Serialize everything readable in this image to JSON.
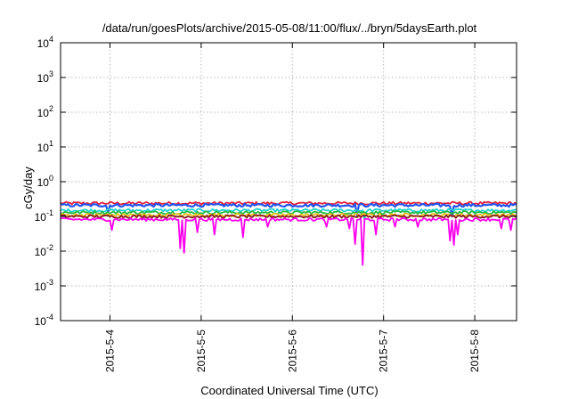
{
  "chart_data": {
    "type": "line",
    "title": "/data/run/goesPlots/archive/2015-05-08/11:00/flux/../bryn/5daysEarth.plot",
    "xlabel": "Coordinated Universal Time (UTC)",
    "ylabel": "cGy/day",
    "y_scale": "log",
    "ylim": [
      0.0001,
      10000
    ],
    "y_ticks": [
      {
        "value": 0.0001,
        "base": "10",
        "exp": "-4"
      },
      {
        "value": 0.001,
        "base": "10",
        "exp": "-3"
      },
      {
        "value": 0.01,
        "base": "10",
        "exp": "-2"
      },
      {
        "value": 0.1,
        "base": "10",
        "exp": "-1"
      },
      {
        "value": 1,
        "base": "10",
        "exp": "0"
      },
      {
        "value": 10,
        "base": "10",
        "exp": "1"
      },
      {
        "value": 100,
        "base": "10",
        "exp": "2"
      },
      {
        "value": 1000,
        "base": "10",
        "exp": "3"
      },
      {
        "value": 10000,
        "base": "10",
        "exp": "4"
      }
    ],
    "xlim": [
      "2015-05-03 11:00",
      "2015-05-08 11:00"
    ],
    "x_ticks": [
      {
        "value": "2015-05-04 00:00",
        "label": "2015-5-4"
      },
      {
        "value": "2015-05-05 00:00",
        "label": "2015-5-5"
      },
      {
        "value": "2015-05-06 00:00",
        "label": "2015-5-6"
      },
      {
        "value": "2015-05-07 00:00",
        "label": "2015-5-7"
      },
      {
        "value": "2015-05-08 00:00",
        "label": "2015-5-8"
      }
    ],
    "grid": true,
    "legend": "none",
    "series": [
      {
        "color": "#e0203a",
        "level": 0.24,
        "dips": []
      },
      {
        "color": "#2255ee",
        "level": 0.21,
        "dips": [
          {
            "time": "2015-05-03 23:30",
            "value": 0.13
          },
          {
            "time": "2015-05-06 17:00",
            "value": 0.11
          },
          {
            "time": "2015-05-07 18:00",
            "value": 0.1
          }
        ]
      },
      {
        "color": "#22d0d0",
        "level": 0.15,
        "dips": [
          {
            "time": "2015-05-06 19:00",
            "value": 0.08
          }
        ]
      },
      {
        "color": "#22bb44",
        "level": 0.13,
        "dips": []
      },
      {
        "color": "#e8c020",
        "level": 0.11,
        "dips": []
      },
      {
        "color": "#8a1a1a",
        "level": 0.1,
        "dips": []
      },
      {
        "color": "#ff00ee",
        "level": 0.082,
        "dips": [
          {
            "time": "2015-05-04 00:30",
            "value": 0.04
          },
          {
            "time": "2015-05-04 18:30",
            "value": 0.012
          },
          {
            "time": "2015-05-04 19:15",
            "value": 0.009
          },
          {
            "time": "2015-05-04 23:00",
            "value": 0.035
          },
          {
            "time": "2015-05-05 03:30",
            "value": 0.03
          },
          {
            "time": "2015-05-05 11:00",
            "value": 0.025
          },
          {
            "time": "2015-05-05 17:30",
            "value": 0.05
          },
          {
            "time": "2015-05-06 09:00",
            "value": 0.05
          },
          {
            "time": "2015-05-06 15:00",
            "value": 0.045
          },
          {
            "time": "2015-05-06 16:30",
            "value": 0.016
          },
          {
            "time": "2015-05-06 18:30",
            "value": 0.004
          },
          {
            "time": "2015-05-06 22:00",
            "value": 0.03
          },
          {
            "time": "2015-05-07 03:00",
            "value": 0.05
          },
          {
            "time": "2015-05-07 09:00",
            "value": 0.05
          },
          {
            "time": "2015-05-07 17:30",
            "value": 0.02
          },
          {
            "time": "2015-05-07 18:30",
            "value": 0.015
          },
          {
            "time": "2015-05-07 19:30",
            "value": 0.03
          },
          {
            "time": "2015-05-08 07:00",
            "value": 0.045
          },
          {
            "time": "2015-05-08 09:30",
            "value": 0.04
          }
        ]
      }
    ]
  }
}
